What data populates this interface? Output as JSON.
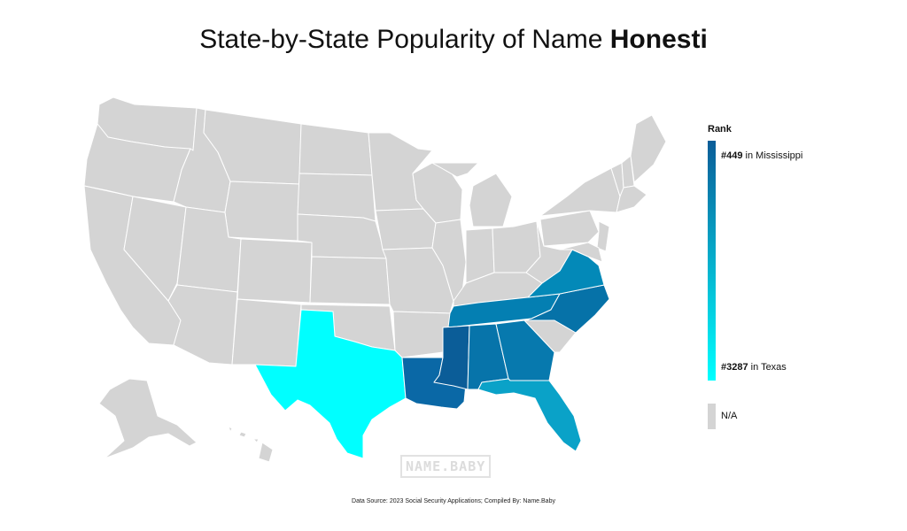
{
  "title": {
    "prefix": "State-by-State Popularity of Name ",
    "name": "Honesti"
  },
  "legend": {
    "title": "Rank",
    "top_rank": "#449",
    "top_text": " in Mississippi",
    "bottom_rank": "#3287",
    "bottom_text": " in Texas",
    "na_label": "N/A",
    "gradient_top_color": "#0b5d98",
    "gradient_bottom_color": "#00ffff",
    "na_color": "#d4d4d4"
  },
  "map": {
    "default_color": "#d4d4d4",
    "ranked_states": [
      {
        "state": "Mississippi",
        "color": "#0b5d98"
      },
      {
        "state": "Louisiana",
        "color": "#0a68a6"
      },
      {
        "state": "Alabama",
        "color": "#0774aa"
      },
      {
        "state": "North Carolina",
        "color": "#0672a8"
      },
      {
        "state": "Georgia",
        "color": "#0779ae"
      },
      {
        "state": "Tennessee",
        "color": "#047fb2"
      },
      {
        "state": "Virginia",
        "color": "#0389b8"
      },
      {
        "state": "Florida",
        "color": "#0aa2c8"
      },
      {
        "state": "Texas",
        "color": "#00ffff"
      }
    ]
  },
  "watermark": "NAME.BABY",
  "source": "Data Source: 2023 Social Security Applications; Compiled By: Name.Baby"
}
